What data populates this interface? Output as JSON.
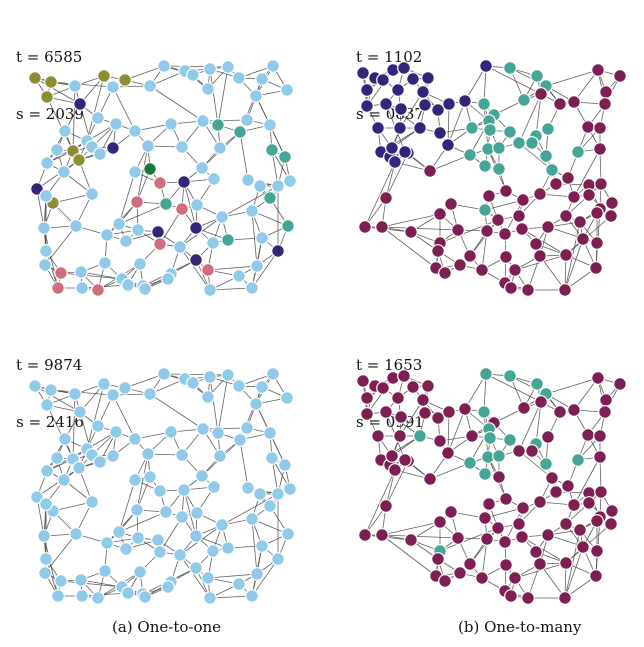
{
  "panels": [
    {
      "id": "a-top",
      "t_text": "t = 6585",
      "s_text": "s = 2039"
    },
    {
      "id": "b-top",
      "t_text": "t = 1102",
      "s_text": "s = 0837"
    },
    {
      "id": "a-bottom",
      "t_text": "t = 9874",
      "s_text": "s = 2416"
    },
    {
      "id": "b-bottom",
      "t_text": "t = 1653",
      "s_text": "s = 0991"
    }
  ],
  "captions": {
    "a": "(a) One-to-one",
    "b": "(b) One-to-many"
  },
  "colors": {
    "light_blue": "#8fcbe8",
    "olive": "#8f8d33",
    "indigo": "#35247a",
    "teal": "#45a596",
    "rose": "#d16d7f",
    "green": "#157a3a",
    "maroon": "#7d1f53",
    "edge": "#444444",
    "node_stroke": "#ffffff"
  }
}
